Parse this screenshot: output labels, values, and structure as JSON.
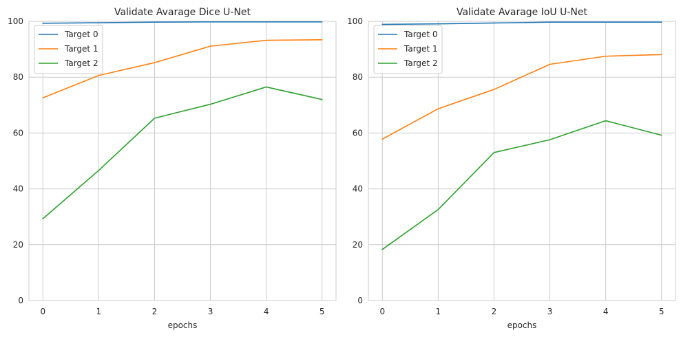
{
  "colors": {
    "target0": "#1f77b4",
    "target1": "#ff7f0e",
    "target2": "#2ca02c"
  },
  "chart_data": [
    {
      "type": "line",
      "title": "Validate Avarage Dice U-Net",
      "xlabel": "epochs",
      "ylabel": "",
      "x": [
        0,
        1,
        2,
        3,
        4,
        5
      ],
      "xticks": [
        "0",
        "1",
        "2",
        "3",
        "4",
        "5"
      ],
      "yticks": [
        "0",
        "20",
        "40",
        "60",
        "80",
        "100"
      ],
      "xlim": [
        -0.25,
        5.25
      ],
      "ylim": [
        0,
        100
      ],
      "grid": true,
      "legend_position": "top-left",
      "series": [
        {
          "name": "Target 0",
          "color": "#1f77b4",
          "values": [
            99.3,
            99.5,
            99.7,
            99.8,
            99.8,
            99.8
          ]
        },
        {
          "name": "Target 1",
          "color": "#ff7f0e",
          "values": [
            72.6,
            80.6,
            85.2,
            91.1,
            93.2,
            93.4
          ]
        },
        {
          "name": "Target 2",
          "color": "#2ca02c",
          "values": [
            29.3,
            46.6,
            65.3,
            70.3,
            76.5,
            72.0
          ]
        }
      ]
    },
    {
      "type": "line",
      "title": "Validate Avarage IoU U-Net",
      "xlabel": "epochs",
      "ylabel": "",
      "x": [
        0,
        1,
        2,
        3,
        4,
        5
      ],
      "xticks": [
        "0",
        "1",
        "2",
        "3",
        "4",
        "5"
      ],
      "yticks": [
        "0",
        "20",
        "40",
        "60",
        "80",
        "100"
      ],
      "xlim": [
        -0.25,
        5.25
      ],
      "ylim": [
        0,
        100
      ],
      "grid": true,
      "legend_position": "top-left",
      "series": [
        {
          "name": "Target 0",
          "color": "#1f77b4",
          "values": [
            98.9,
            99.1,
            99.4,
            99.7,
            99.7,
            99.7
          ]
        },
        {
          "name": "Target 1",
          "color": "#ff7f0e",
          "values": [
            57.8,
            68.7,
            75.6,
            84.6,
            87.5,
            88.1
          ]
        },
        {
          "name": "Target 2",
          "color": "#2ca02c",
          "values": [
            18.3,
            32.6,
            53.0,
            57.6,
            64.4,
            59.2
          ]
        }
      ]
    }
  ]
}
